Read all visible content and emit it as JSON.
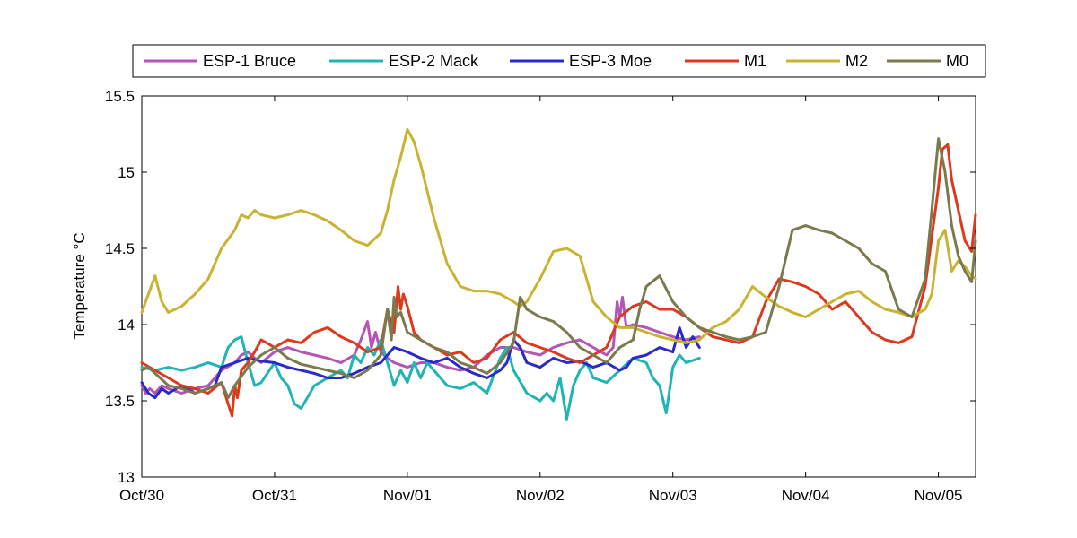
{
  "chart_data": {
    "type": "line",
    "title": "",
    "xlabel": "",
    "ylabel": "Temperature °C",
    "x_ticks": [
      {
        "label": "Oct/30",
        "day": 0
      },
      {
        "label": "Oct/31",
        "day": 1
      },
      {
        "label": "Nov/01",
        "day": 2
      },
      {
        "label": "Nov/02",
        "day": 3
      },
      {
        "label": "Nov/03",
        "day": 4
      },
      {
        "label": "Nov/04",
        "day": 5
      },
      {
        "label": "Nov/05",
        "day": 6
      }
    ],
    "xlim": [
      0,
      6.28
    ],
    "ylim": [
      13,
      15.5
    ],
    "y_ticks": [
      "13",
      "13.5",
      "14",
      "14.5",
      "15",
      "15.5"
    ],
    "grid": false,
    "legend_position": "top",
    "series": [
      {
        "name": "ESP-1 Bruce",
        "color": "#B454B4",
        "x": [
          0,
          0.03,
          0.06,
          0.1,
          0.15,
          0.2,
          0.3,
          0.4,
          0.5,
          0.6,
          0.7,
          0.75,
          0.8,
          0.85,
          0.9,
          1,
          1.1,
          1.2,
          1.3,
          1.4,
          1.5,
          1.6,
          1.65,
          1.7,
          1.73,
          1.76,
          1.8,
          1.85,
          1.9,
          2,
          2.1,
          2.2,
          2.3,
          2.4,
          2.5,
          2.6,
          2.7,
          2.8,
          2.9,
          3,
          3.1,
          3.2,
          3.3,
          3.4,
          3.5,
          3.55,
          3.58,
          3.6,
          3.62,
          3.65,
          3.7,
          3.8,
          3.9,
          4,
          4.1,
          4.2
        ],
        "y": [
          13.6,
          13.55,
          13.58,
          13.55,
          13.6,
          13.58,
          13.55,
          13.58,
          13.6,
          13.7,
          13.75,
          13.8,
          13.82,
          13.78,
          13.75,
          13.82,
          13.85,
          13.82,
          13.8,
          13.78,
          13.75,
          13.8,
          13.9,
          14.02,
          13.85,
          13.95,
          13.82,
          13.78,
          13.75,
          13.72,
          13.75,
          13.75,
          13.72,
          13.7,
          13.72,
          13.8,
          13.85,
          13.85,
          13.82,
          13.8,
          13.85,
          13.88,
          13.9,
          13.85,
          13.8,
          13.85,
          14.15,
          14.05,
          14.18,
          13.98,
          14,
          13.98,
          13.95,
          13.92,
          13.9,
          13.92
        ]
      },
      {
        "name": "ESP-2 Mack",
        "color": "#20B4B4",
        "x": [
          0,
          0.1,
          0.2,
          0.3,
          0.4,
          0.5,
          0.6,
          0.65,
          0.7,
          0.75,
          0.8,
          0.85,
          0.9,
          1,
          1.05,
          1.1,
          1.15,
          1.2,
          1.3,
          1.4,
          1.5,
          1.55,
          1.6,
          1.65,
          1.7,
          1.75,
          1.8,
          1.85,
          1.9,
          1.95,
          2,
          2.05,
          2.1,
          2.15,
          2.2,
          2.25,
          2.3,
          2.4,
          2.5,
          2.6,
          2.7,
          2.75,
          2.8,
          2.9,
          3,
          3.05,
          3.1,
          3.15,
          3.2,
          3.25,
          3.3,
          3.35,
          3.4,
          3.5,
          3.6,
          3.7,
          3.8,
          3.85,
          3.9,
          3.95,
          4,
          4.05,
          4.1,
          4.2
        ],
        "y": [
          13.72,
          13.7,
          13.72,
          13.7,
          13.72,
          13.75,
          13.72,
          13.85,
          13.9,
          13.92,
          13.75,
          13.6,
          13.62,
          13.75,
          13.65,
          13.6,
          13.48,
          13.45,
          13.6,
          13.65,
          13.7,
          13.65,
          13.8,
          13.75,
          13.85,
          13.8,
          13.9,
          13.75,
          13.6,
          13.7,
          13.62,
          13.75,
          13.65,
          13.75,
          13.7,
          13.65,
          13.6,
          13.58,
          13.62,
          13.55,
          13.78,
          13.85,
          13.7,
          13.55,
          13.5,
          13.55,
          13.5,
          13.65,
          13.38,
          13.6,
          13.7,
          13.75,
          13.65,
          13.62,
          13.7,
          13.78,
          13.75,
          13.65,
          13.6,
          13.42,
          13.72,
          13.8,
          13.75,
          13.78
        ]
      },
      {
        "name": "ESP-3 Moe",
        "color": "#2A2AC8",
        "x": [
          0,
          0.05,
          0.1,
          0.15,
          0.2,
          0.3,
          0.4,
          0.5,
          0.55,
          0.6,
          0.7,
          0.8,
          0.9,
          1,
          1.1,
          1.2,
          1.3,
          1.4,
          1.5,
          1.6,
          1.7,
          1.8,
          1.9,
          2,
          2.1,
          2.2,
          2.3,
          2.4,
          2.5,
          2.6,
          2.7,
          2.75,
          2.8,
          2.85,
          2.9,
          3,
          3.1,
          3.2,
          3.3,
          3.4,
          3.5,
          3.6,
          3.65,
          3.7,
          3.8,
          3.9,
          4,
          4.05,
          4.1,
          4.15,
          4.2
        ],
        "y": [
          13.62,
          13.55,
          13.52,
          13.58,
          13.55,
          13.6,
          13.55,
          13.58,
          13.6,
          13.72,
          13.75,
          13.78,
          13.76,
          13.75,
          13.72,
          13.7,
          13.68,
          13.65,
          13.65,
          13.68,
          13.72,
          13.75,
          13.85,
          13.82,
          13.78,
          13.75,
          13.78,
          13.72,
          13.68,
          13.65,
          13.7,
          13.75,
          13.9,
          13.85,
          13.75,
          13.72,
          13.78,
          13.75,
          13.76,
          13.72,
          13.75,
          13.7,
          13.72,
          13.78,
          13.8,
          13.85,
          13.82,
          13.98,
          13.85,
          13.92,
          13.85
        ]
      },
      {
        "name": "M1",
        "color": "#DC3A1E",
        "x": [
          0,
          0.1,
          0.2,
          0.3,
          0.4,
          0.5,
          0.6,
          0.65,
          0.68,
          0.7,
          0.72,
          0.75,
          0.8,
          0.85,
          0.9,
          1,
          1.1,
          1.2,
          1.3,
          1.4,
          1.5,
          1.6,
          1.7,
          1.8,
          1.85,
          1.9,
          1.93,
          1.95,
          1.97,
          2,
          2.05,
          2.1,
          2.2,
          2.3,
          2.4,
          2.5,
          2.6,
          2.7,
          2.8,
          2.9,
          3,
          3.1,
          3.2,
          3.3,
          3.4,
          3.5,
          3.6,
          3.7,
          3.8,
          3.9,
          4,
          4.1,
          4.2,
          4.3,
          4.4,
          4.5,
          4.6,
          4.7,
          4.8,
          4.9,
          5,
          5.1,
          5.2,
          5.3,
          5.4,
          5.5,
          5.6,
          5.7,
          5.8,
          5.9,
          6,
          6.03,
          6.07,
          6.1,
          6.15,
          6.2,
          6.25,
          6.28
        ],
        "y": [
          13.75,
          13.7,
          13.65,
          13.6,
          13.58,
          13.55,
          13.62,
          13.48,
          13.4,
          13.6,
          13.52,
          13.7,
          13.75,
          13.82,
          13.9,
          13.85,
          13.9,
          13.88,
          13.95,
          13.98,
          13.92,
          13.88,
          13.82,
          13.85,
          14.1,
          13.95,
          14.25,
          14.1,
          14.2,
          14.12,
          13.95,
          13.9,
          13.85,
          13.8,
          13.82,
          13.75,
          13.78,
          13.9,
          13.95,
          13.88,
          13.85,
          13.82,
          13.78,
          13.75,
          13.8,
          13.85,
          14.05,
          14.12,
          14.15,
          14.1,
          14.1,
          14.05,
          13.98,
          13.92,
          13.9,
          13.88,
          13.92,
          14.15,
          14.3,
          14.28,
          14.25,
          14.2,
          14.1,
          14.15,
          14.05,
          13.95,
          13.9,
          13.88,
          13.92,
          14.25,
          14.9,
          15.15,
          15.18,
          14.95,
          14.75,
          14.55,
          14.48,
          14.72
        ]
      },
      {
        "name": "M2",
        "color": "#C8B432",
        "x": [
          0,
          0.05,
          0.1,
          0.15,
          0.2,
          0.3,
          0.4,
          0.5,
          0.55,
          0.6,
          0.7,
          0.75,
          0.8,
          0.85,
          0.9,
          1,
          1.1,
          1.2,
          1.3,
          1.4,
          1.5,
          1.6,
          1.7,
          1.8,
          1.85,
          1.9,
          1.95,
          2,
          2.05,
          2.1,
          2.2,
          2.3,
          2.4,
          2.5,
          2.6,
          2.7,
          2.8,
          2.85,
          2.9,
          3,
          3.1,
          3.2,
          3.3,
          3.4,
          3.5,
          3.6,
          3.7,
          3.8,
          3.9,
          4,
          4.1,
          4.2,
          4.3,
          4.4,
          4.5,
          4.6,
          4.7,
          4.8,
          4.9,
          5,
          5.1,
          5.2,
          5.3,
          5.4,
          5.5,
          5.6,
          5.7,
          5.8,
          5.9,
          5.95,
          6,
          6.05,
          6.1,
          6.15,
          6.2,
          6.25,
          6.28
        ],
        "y": [
          14.08,
          14.2,
          14.32,
          14.15,
          14.08,
          14.12,
          14.2,
          14.3,
          14.4,
          14.5,
          14.62,
          14.72,
          14.7,
          14.75,
          14.72,
          14.7,
          14.72,
          14.75,
          14.72,
          14.68,
          14.62,
          14.55,
          14.52,
          14.6,
          14.75,
          14.95,
          15.1,
          15.28,
          15.2,
          15.05,
          14.7,
          14.4,
          14.25,
          14.22,
          14.22,
          14.2,
          14.15,
          14.12,
          14.15,
          14.3,
          14.48,
          14.5,
          14.45,
          14.15,
          14.05,
          13.98,
          13.98,
          13.95,
          13.92,
          13.9,
          13.88,
          13.9,
          13.98,
          14.02,
          14.1,
          14.25,
          14.18,
          14.12,
          14.08,
          14.05,
          14.1,
          14.15,
          14.2,
          14.22,
          14.15,
          14.1,
          14.08,
          14.05,
          14.1,
          14.2,
          14.55,
          14.62,
          14.35,
          14.42,
          14.38,
          14.32,
          14.3
        ]
      },
      {
        "name": "M0",
        "color": "#7B7A4E",
        "x": [
          0,
          0.05,
          0.1,
          0.2,
          0.3,
          0.4,
          0.5,
          0.6,
          0.65,
          0.7,
          0.8,
          0.9,
          1,
          1.1,
          1.2,
          1.3,
          1.4,
          1.5,
          1.6,
          1.7,
          1.8,
          1.85,
          1.88,
          1.9,
          1.92,
          1.95,
          2,
          2.1,
          2.2,
          2.3,
          2.4,
          2.5,
          2.6,
          2.7,
          2.8,
          2.85,
          2.9,
          3,
          3.1,
          3.2,
          3.3,
          3.4,
          3.5,
          3.6,
          3.7,
          3.75,
          3.8,
          3.9,
          4,
          4.1,
          4.2,
          4.3,
          4.4,
          4.5,
          4.6,
          4.7,
          4.8,
          4.9,
          5,
          5.1,
          5.2,
          5.3,
          5.4,
          5.5,
          5.6,
          5.7,
          5.8,
          5.9,
          5.95,
          6,
          6.05,
          6.1,
          6.15,
          6.2,
          6.25,
          6.28
        ],
        "y": [
          13.7,
          13.72,
          13.68,
          13.6,
          13.58,
          13.55,
          13.58,
          13.62,
          13.52,
          13.6,
          13.72,
          13.8,
          13.85,
          13.78,
          13.74,
          13.72,
          13.7,
          13.68,
          13.65,
          13.7,
          13.8,
          14.1,
          13.9,
          14.18,
          14.05,
          14.08,
          13.95,
          13.9,
          13.85,
          13.82,
          13.75,
          13.72,
          13.68,
          13.75,
          13.88,
          14.18,
          14.1,
          14.05,
          14.02,
          13.95,
          13.85,
          13.8,
          13.75,
          13.85,
          13.9,
          14.1,
          14.25,
          14.32,
          14.15,
          14.05,
          13.98,
          13.95,
          13.92,
          13.9,
          13.92,
          13.95,
          14.25,
          14.62,
          14.65,
          14.62,
          14.6,
          14.55,
          14.5,
          14.4,
          14.35,
          14.1,
          14.05,
          14.3,
          14.75,
          15.22,
          15.0,
          14.65,
          14.45,
          14.35,
          14.28,
          14.55
        ]
      }
    ]
  }
}
